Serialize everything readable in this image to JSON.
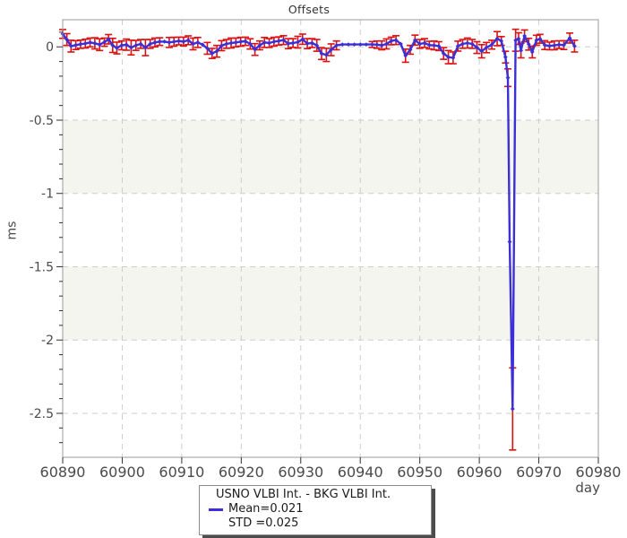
{
  "chart": {
    "title": "Offsets",
    "xlabel": "day",
    "ylabel": "ms"
  },
  "legend": {
    "series_label": "USNO VLBI Int. - BKG VLBI Int.",
    "mean_label": "Mean=0.021",
    "std_label": "STD =0.025",
    "mean": 0.021,
    "std": 0.025
  },
  "chart_data": {
    "type": "line",
    "title": "Offsets",
    "xlabel": "day",
    "ylabel": "ms",
    "xlim": [
      60890,
      60980
    ],
    "ylim": [
      -2.8,
      0.185
    ],
    "xticks": [
      60890,
      60900,
      60910,
      60920,
      60930,
      60940,
      60950,
      60960,
      60970,
      60980
    ],
    "xtick_labels": [
      "60890",
      "60900",
      "60910",
      "60920",
      "60930",
      "60940",
      "60950",
      "60960",
      "60970",
      "60980"
    ],
    "yticks_major": [
      0,
      -0.5,
      -1,
      -1.5,
      -2,
      -2.5
    ],
    "ytick_labels": [
      "0",
      "-0.5",
      "-1",
      "-1.5",
      "-2",
      "-2.5"
    ],
    "y_minor_step": 0.1,
    "grid": true,
    "shaded_bands": [
      [
        -0.5,
        -1.0
      ],
      [
        -1.5,
        -2.0
      ]
    ],
    "legend_position": "bottom-center",
    "colors": {
      "line": "#3c2fd6",
      "error": "#dd1111",
      "band": "#f4f5ee",
      "grid": "#cdcdcd",
      "frame": "#9b9b9b",
      "tick": "#2f2f2f",
      "tick_text": "#4a4a4a"
    },
    "series": [
      {
        "name": "USNO VLBI Int. - BKG VLBI Int.",
        "mean": 0.021,
        "std": 0.025,
        "points": [
          [
            60890.0,
            0.088,
            0.03
          ],
          [
            60890.7,
            0.05,
            0.04
          ],
          [
            60891.4,
            0.005,
            0.04
          ],
          [
            60892.2,
            0.012,
            0.03
          ],
          [
            60893.0,
            0.018,
            0.028
          ],
          [
            60893.8,
            0.022,
            0.03
          ],
          [
            60894.6,
            0.03,
            0.03
          ],
          [
            60895.4,
            0.024,
            0.038
          ],
          [
            60896.2,
            0.015,
            0.04
          ],
          [
            60897.0,
            0.032,
            0.028
          ],
          [
            60897.7,
            0.052,
            0.032
          ],
          [
            60898.4,
            0.01,
            0.048
          ],
          [
            60899.1,
            -0.008,
            0.04
          ],
          [
            60899.9,
            0.01,
            0.03
          ],
          [
            60900.7,
            0.015,
            0.038
          ],
          [
            60901.5,
            -0.005,
            0.05
          ],
          [
            60902.3,
            0.01,
            0.034
          ],
          [
            60903.1,
            0.02,
            0.03
          ],
          [
            60903.9,
            -0.005,
            0.055
          ],
          [
            60904.7,
            0.02,
            0.03
          ],
          [
            60905.5,
            0.03,
            0.03
          ],
          [
            60906.3,
            0.036,
            0.026
          ],
          [
            60907.1,
            0.036,
            null
          ],
          [
            60907.9,
            0.03,
            0.034
          ],
          [
            60908.7,
            0.035,
            0.03
          ],
          [
            60909.5,
            0.04,
            0.026
          ],
          [
            60910.3,
            0.036,
            0.03
          ],
          [
            60911.1,
            0.045,
            0.03
          ],
          [
            60911.9,
            0.02,
            0.04
          ],
          [
            60912.7,
            0.03,
            0.034
          ],
          [
            60913.5,
            0.015,
            null
          ],
          [
            60914.3,
            -0.01,
            0.04
          ],
          [
            60915.1,
            -0.045,
            0.034
          ],
          [
            60915.9,
            -0.03,
            0.04
          ],
          [
            60916.7,
            0.008,
            0.034
          ],
          [
            60917.5,
            0.02,
            0.03
          ],
          [
            60918.3,
            0.026,
            0.034
          ],
          [
            60919.1,
            0.03,
            0.03
          ],
          [
            60919.9,
            0.035,
            0.03
          ],
          [
            60920.7,
            0.038,
            0.028
          ],
          [
            60921.5,
            0.02,
            0.035
          ],
          [
            60922.3,
            -0.018,
            0.04
          ],
          [
            60923.1,
            0.01,
            0.03
          ],
          [
            60923.9,
            0.03,
            0.034
          ],
          [
            60924.7,
            0.026,
            0.03
          ],
          [
            60925.5,
            0.035,
            0.03
          ],
          [
            60926.3,
            0.04,
            0.028
          ],
          [
            60927.1,
            0.046,
            0.03
          ],
          [
            60927.9,
            0.022,
            0.034
          ],
          [
            60928.7,
            0.026,
            0.03
          ],
          [
            60929.5,
            0.032,
            0.04
          ],
          [
            60930.3,
            0.052,
            0.035
          ],
          [
            60931.1,
            0.022,
            0.034
          ],
          [
            60931.9,
            0.026,
            0.03
          ],
          [
            60932.7,
            0.01,
            0.04
          ],
          [
            60933.5,
            -0.046,
            0.04
          ],
          [
            60934.3,
            -0.055,
            0.045
          ],
          [
            60935.1,
            -0.02,
            0.04
          ],
          [
            60936.0,
            0.01,
            0.03
          ],
          [
            60937.0,
            0.016,
            null
          ],
          [
            60938.0,
            0.016,
            null
          ],
          [
            60939.0,
            0.016,
            null
          ],
          [
            60940.0,
            0.016,
            null
          ],
          [
            60941.0,
            0.016,
            null
          ],
          [
            60942.0,
            0.016,
            0.02
          ],
          [
            60942.8,
            0.015,
            0.025
          ],
          [
            60943.6,
            0.01,
            0.03
          ],
          [
            60944.4,
            0.02,
            0.034
          ],
          [
            60945.2,
            0.04,
            0.026
          ],
          [
            60946.0,
            0.046,
            0.03
          ],
          [
            60946.8,
            0.02,
            null
          ],
          [
            60947.6,
            -0.06,
            0.045
          ],
          [
            60948.4,
            -0.02,
            0.03
          ],
          [
            60949.2,
            0.046,
            0.034
          ],
          [
            60950.0,
            0.02,
            0.03
          ],
          [
            60950.8,
            0.026,
            0.03
          ],
          [
            60951.6,
            0.012,
            0.026
          ],
          [
            60952.4,
            0.01,
            0.03
          ],
          [
            60953.2,
            0.005,
            0.03
          ],
          [
            60954.0,
            -0.045,
            0.04
          ],
          [
            60954.8,
            -0.07,
            0.045
          ],
          [
            60955.6,
            -0.075,
            0.04
          ],
          [
            60956.4,
            0.005,
            0.034
          ],
          [
            60957.2,
            0.02,
            0.03
          ],
          [
            60958.0,
            0.026,
            0.034
          ],
          [
            60958.8,
            0.02,
            0.03
          ],
          [
            60959.6,
            -0.005,
            0.04
          ],
          [
            60960.4,
            -0.03,
            0.045
          ],
          [
            60961.2,
            -0.005,
            0.035
          ],
          [
            60962.1,
            0.015,
            0.03
          ],
          [
            60963.0,
            0.056,
            0.048
          ],
          [
            60963.7,
            0.04,
            0.03
          ],
          [
            60964.4,
            -0.07,
            0.04
          ],
          [
            60964.8,
            -0.21,
            0.06
          ],
          [
            60965.1,
            -1.33,
            null
          ],
          [
            60965.6,
            -2.47,
            0.28
          ],
          [
            60966.1,
            0.045,
            0.075
          ],
          [
            60966.6,
            0.056,
            0.04
          ],
          [
            60967.0,
            -0.025,
            0.05
          ],
          [
            60967.6,
            0.075,
            0.04
          ],
          [
            60968.3,
            0.018,
            0.04
          ],
          [
            60968.9,
            -0.035,
            0.04
          ],
          [
            60969.6,
            0.045,
            0.034
          ],
          [
            60970.2,
            0.055,
            0.03
          ],
          [
            60971.0,
            0.012,
            0.03
          ],
          [
            60971.8,
            0.006,
            0.026
          ],
          [
            60972.6,
            0.01,
            0.03
          ],
          [
            60973.4,
            0.015,
            0.026
          ],
          [
            60974.2,
            0.012,
            0.03
          ],
          [
            60975.2,
            0.06,
            0.034
          ],
          [
            60976.0,
            0.005,
            0.04
          ]
        ]
      }
    ]
  }
}
